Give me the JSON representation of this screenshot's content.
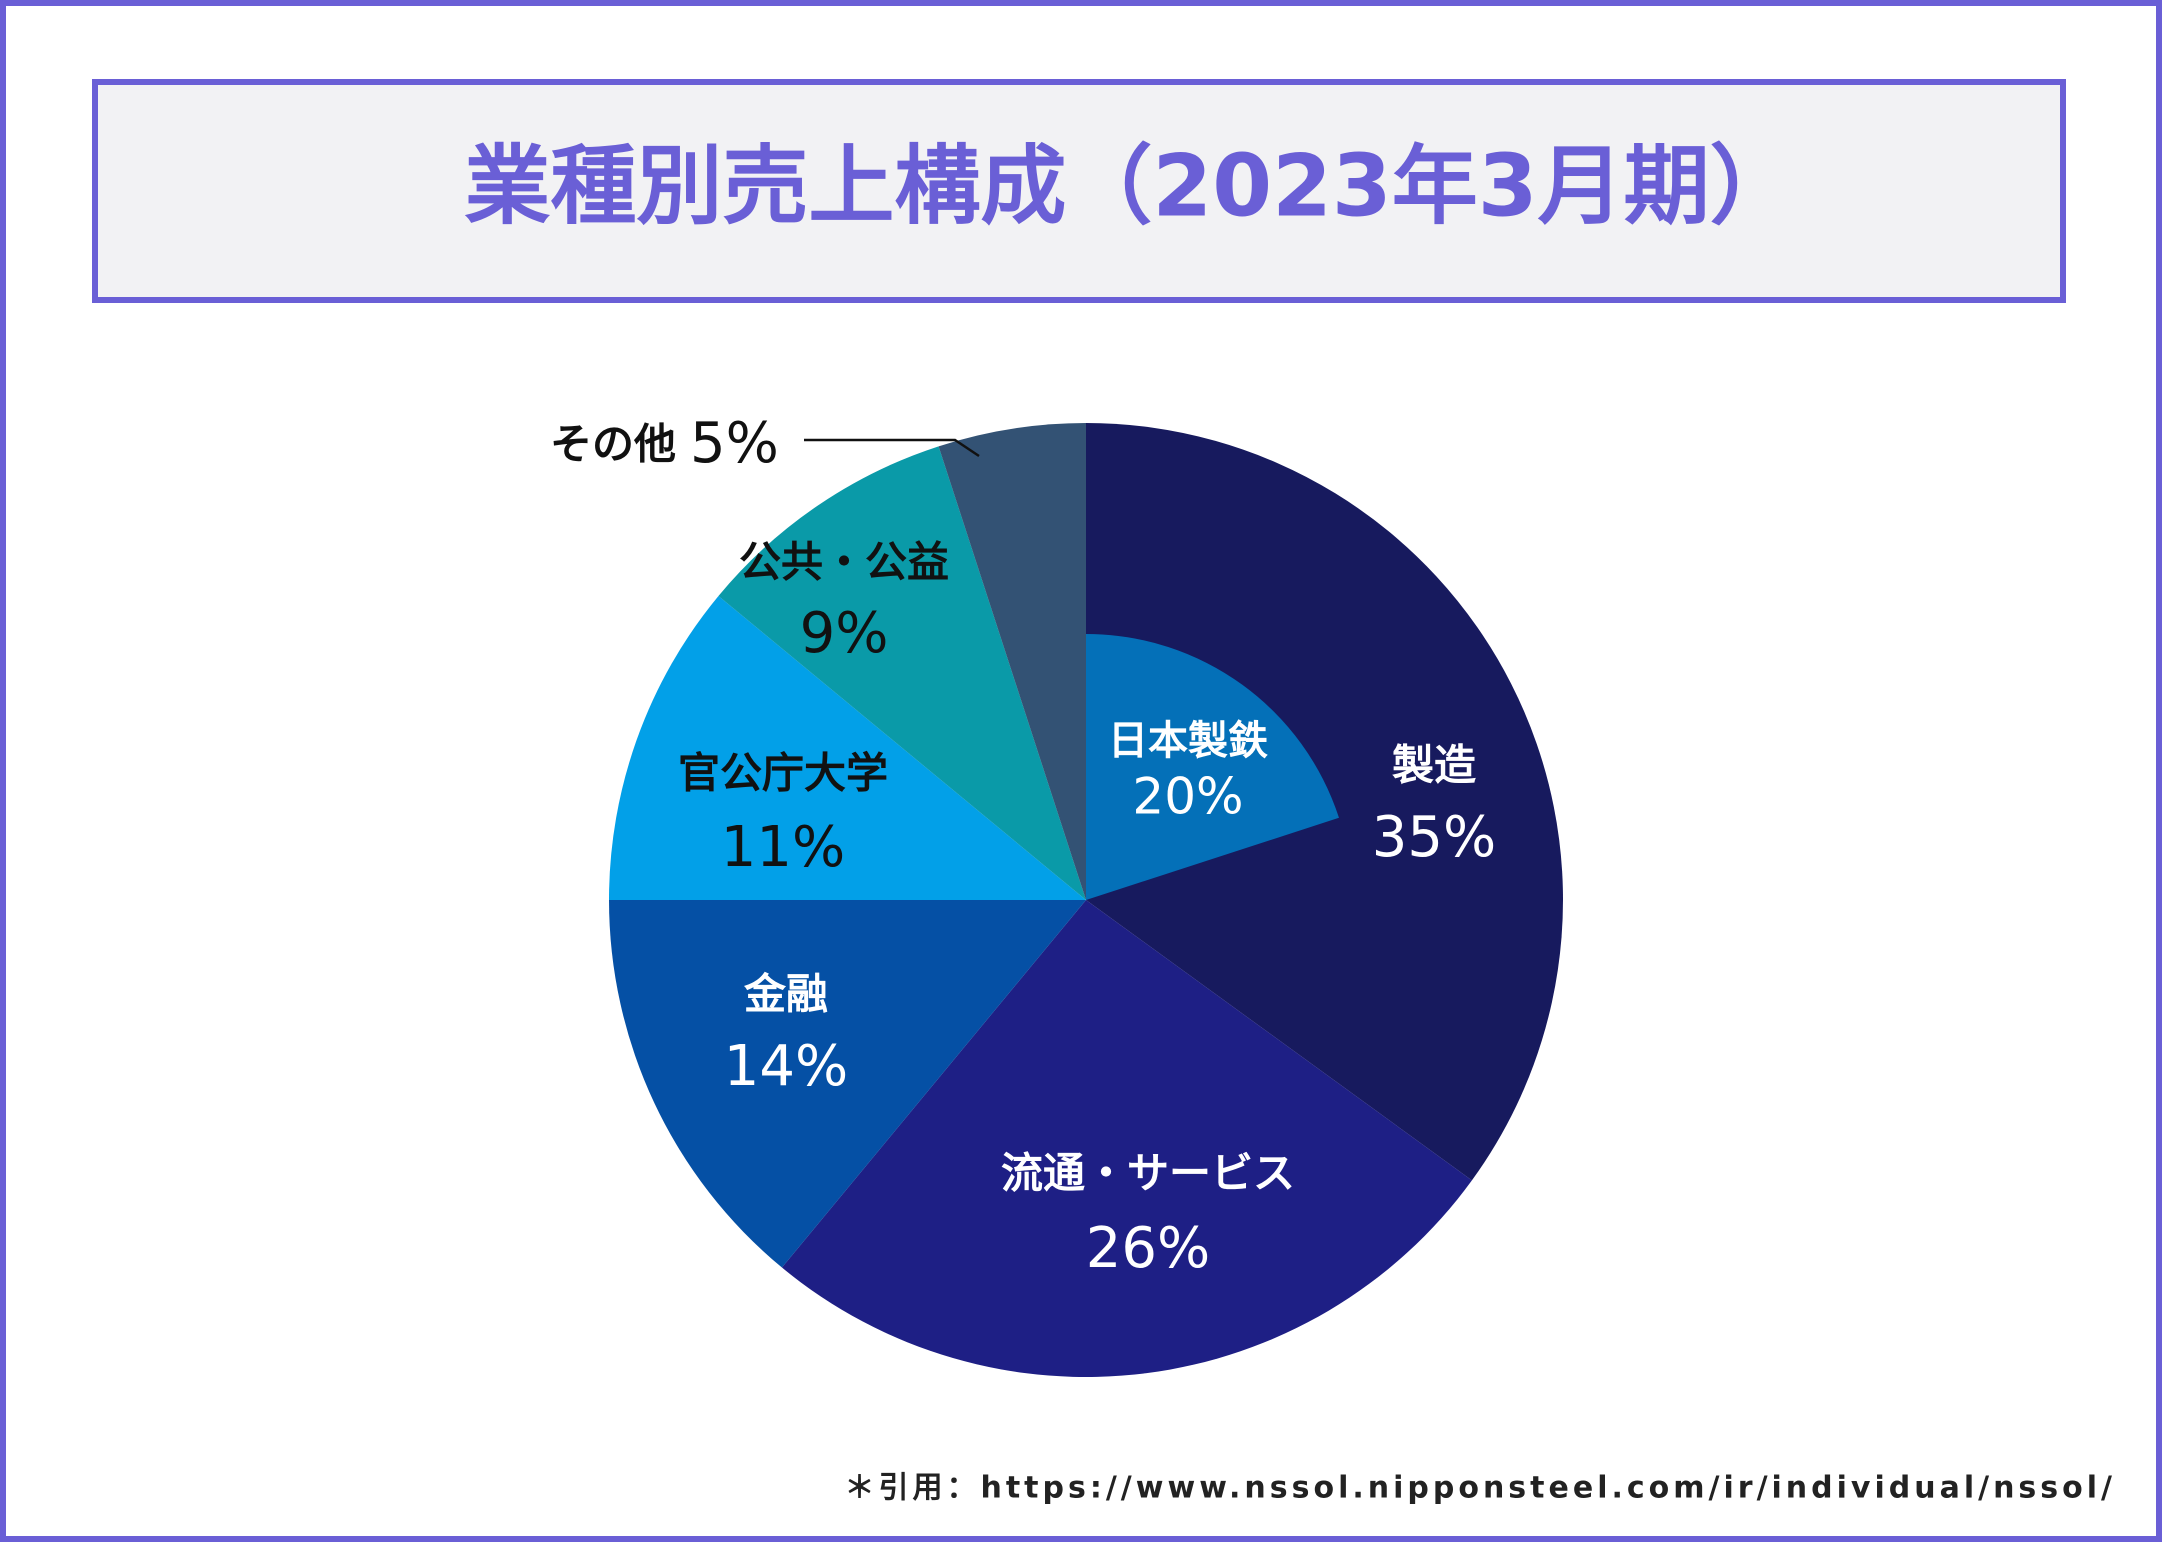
{
  "chart_data": {
    "type": "pie",
    "title": "業種別売上構成（2023年3月期）",
    "categories": [
      "製造",
      "流通・サービス",
      "金融",
      "官公庁大学",
      "公共・公益",
      "その他"
    ],
    "values": [
      35,
      26,
      14,
      11,
      9,
      5
    ],
    "value_labels": [
      "35%",
      "26%",
      "14%",
      "11%",
      "9%",
      "5%"
    ],
    "colors": [
      "#171a5e",
      "#1e1f85",
      "#0550a5",
      "#02a0e8",
      "#0a9aa8",
      "#335274"
    ],
    "inner": {
      "name": "日本製鉄",
      "value": 20,
      "value_label": "20%",
      "color": "#0470b8"
    },
    "source": "＊引用：https://www.nssol.nipponsteel.com/ir/individual/nssol/"
  }
}
